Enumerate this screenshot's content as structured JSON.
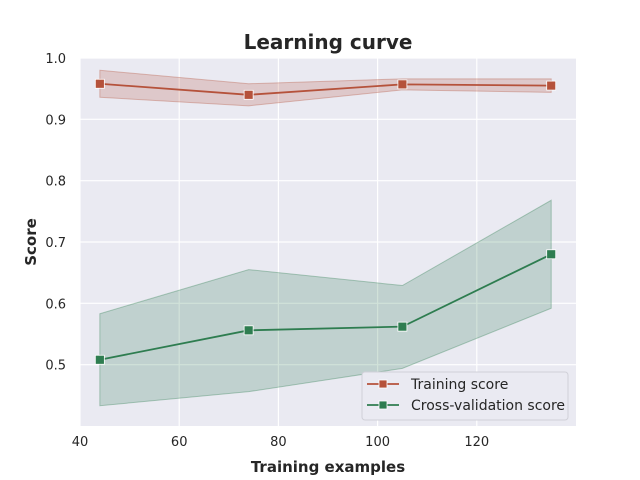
{
  "chart_data": {
    "type": "line",
    "title": "Learning curve",
    "xlabel": "Training examples",
    "ylabel": "Score",
    "xlim": [
      40,
      140
    ],
    "ylim": [
      0.4,
      1.0
    ],
    "xticks": [
      40,
      60,
      80,
      100,
      120
    ],
    "yticks": [
      0.5,
      0.6,
      0.7,
      0.8,
      0.9,
      1.0
    ],
    "xtick_labels": [
      "40",
      "60",
      "80",
      "100",
      "120"
    ],
    "ytick_labels": [
      "0.5",
      "0.6",
      "0.7",
      "0.8",
      "0.9",
      "1.0"
    ],
    "grid": true,
    "legend_position": "lower-right",
    "x": [
      44,
      74,
      105,
      135
    ],
    "series": [
      {
        "name": "Training score",
        "color": "#b5523b",
        "values": [
          0.958,
          0.94,
          0.957,
          0.955
        ],
        "band_lower": [
          0.936,
          0.922,
          0.948,
          0.944
        ],
        "band_upper": [
          0.98,
          0.958,
          0.966,
          0.966
        ]
      },
      {
        "name": "Cross-validation score",
        "color": "#2e7d50",
        "values": [
          0.508,
          0.556,
          0.562,
          0.68
        ],
        "band_lower": [
          0.433,
          0.456,
          0.494,
          0.592
        ],
        "band_upper": [
          0.583,
          0.655,
          0.629,
          0.768
        ]
      }
    ]
  }
}
